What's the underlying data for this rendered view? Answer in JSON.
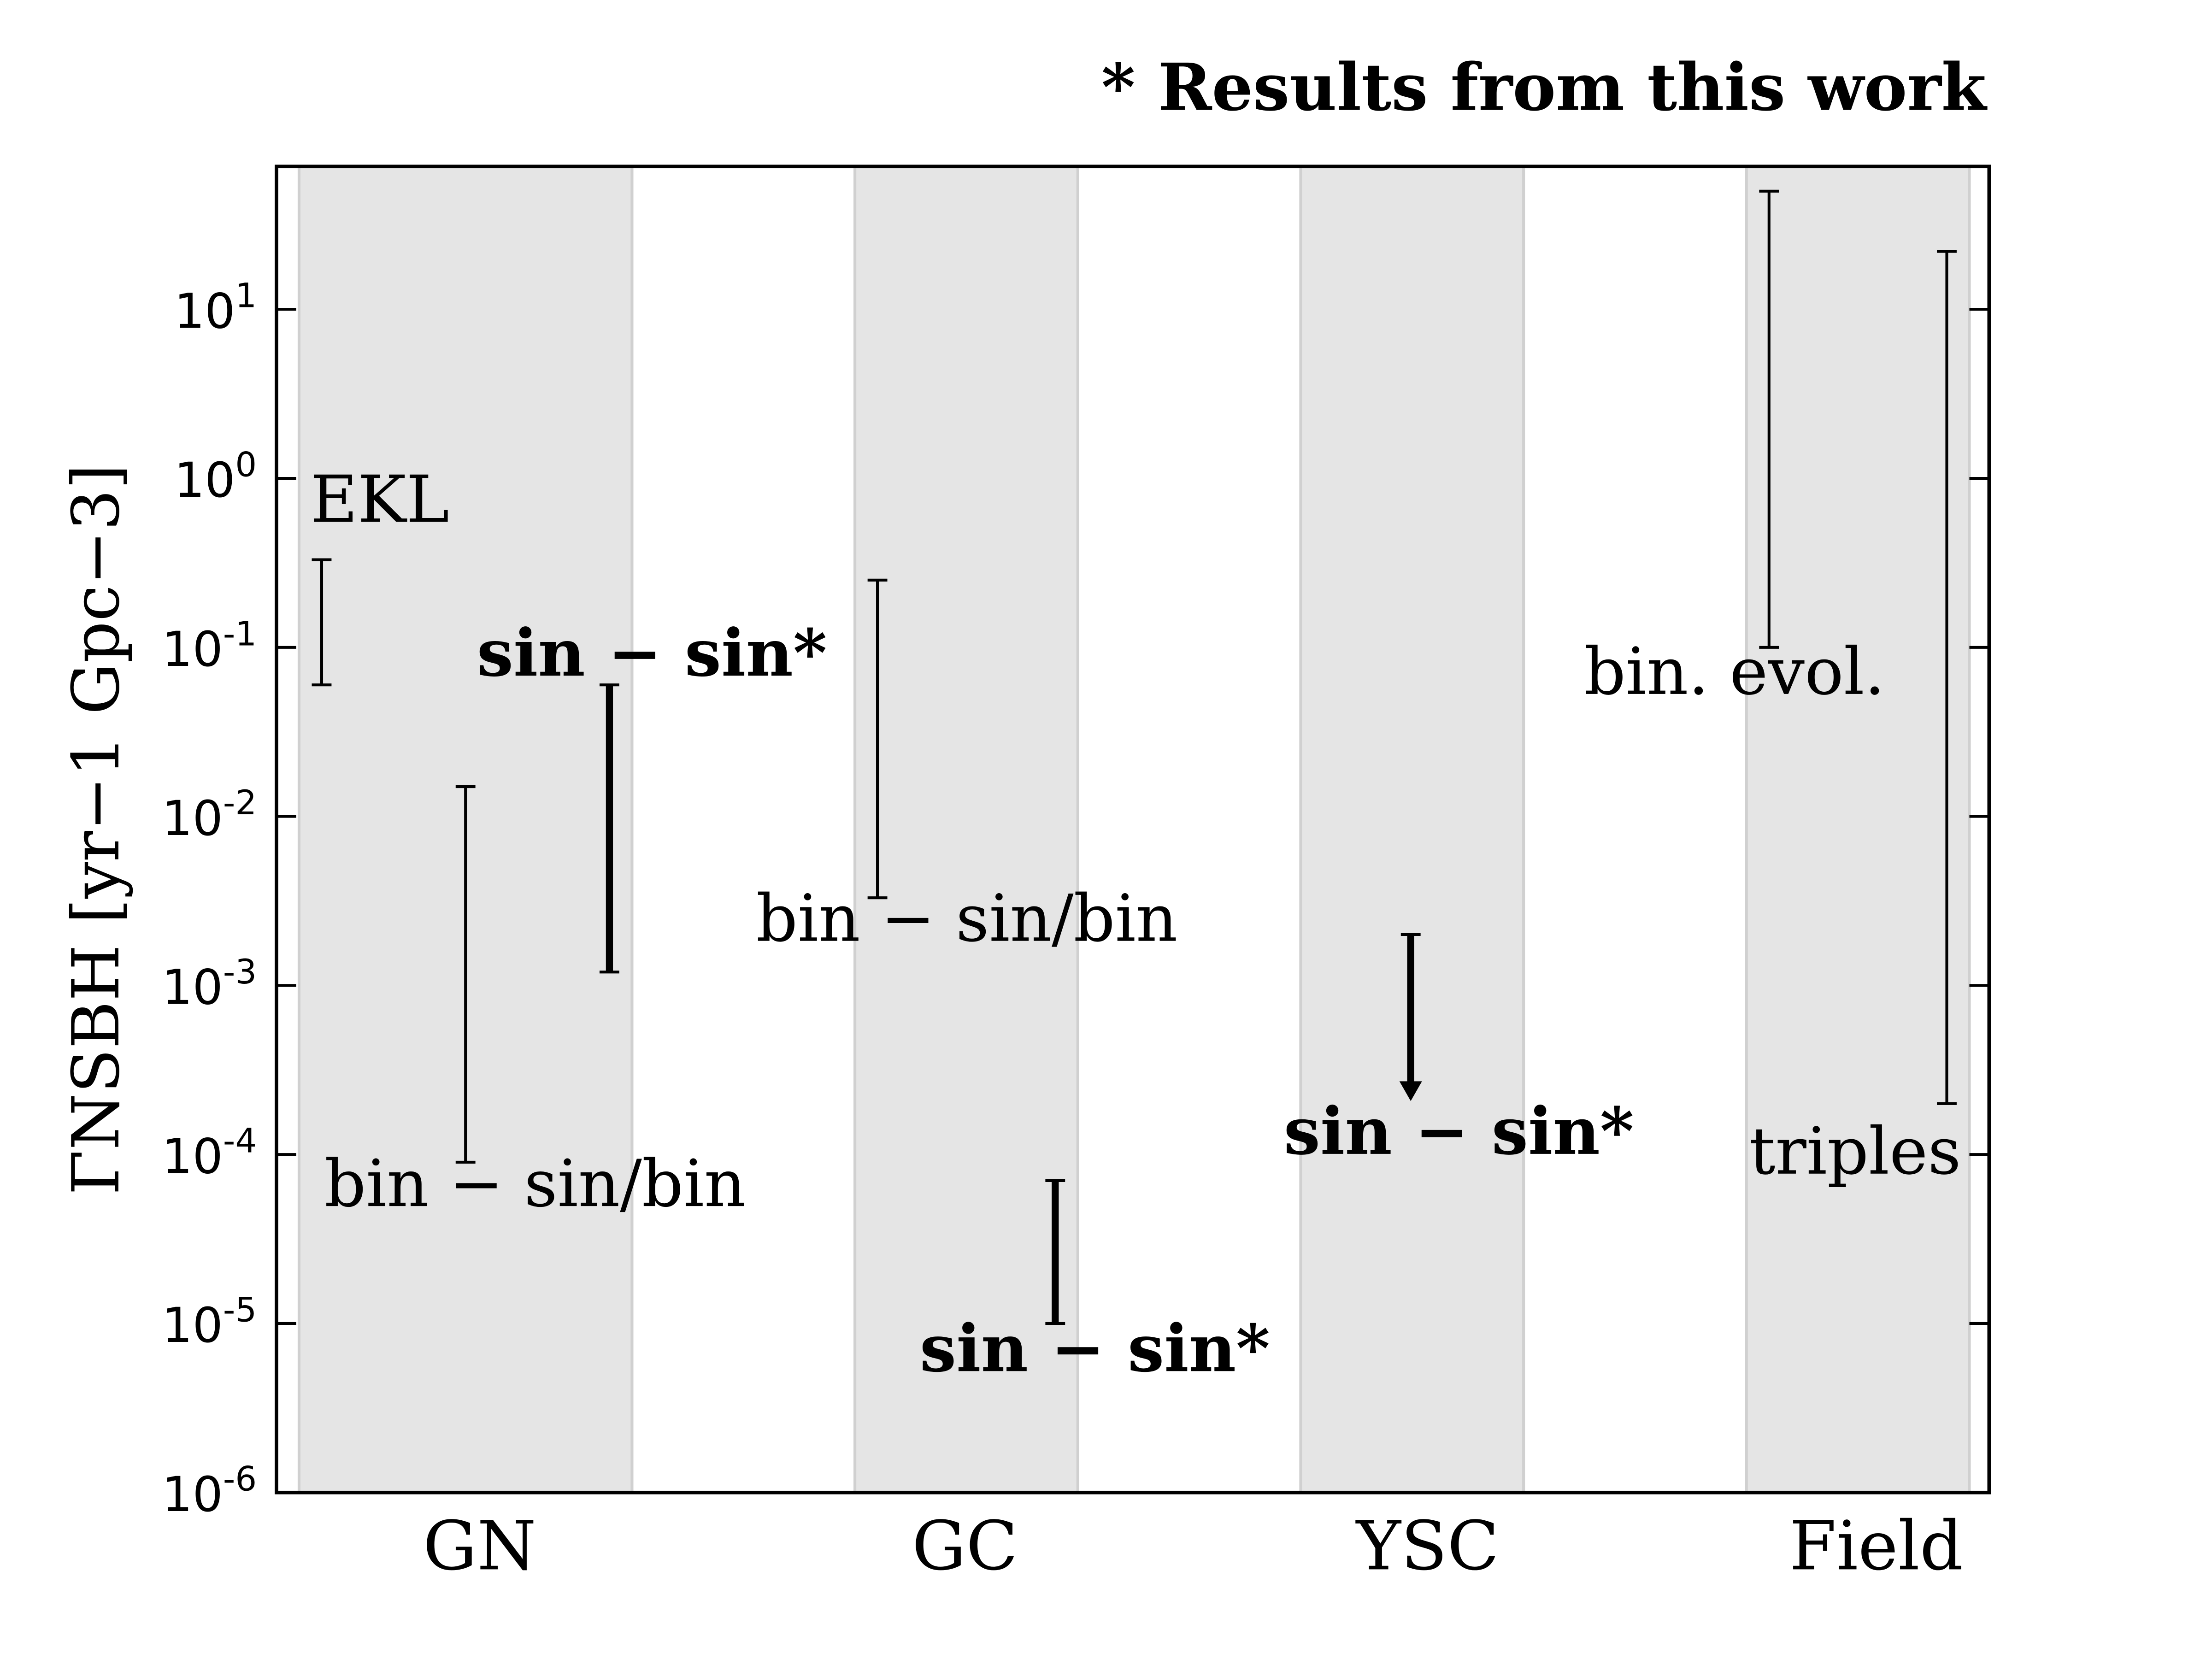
{
  "chart_data": {
    "type": "range",
    "title": "* Results from this work",
    "y_label": "ΓNSBH [yr−1 Gpc−3]",
    "categories": [
      "GN",
      "GC",
      "YSC",
      "Field"
    ],
    "log_y": true,
    "ylim": [
      1e-06,
      70
    ],
    "yticks": [
      {
        "value": 1e-06,
        "label": "10^-6"
      },
      {
        "value": 1e-05,
        "label": "10^-5"
      },
      {
        "value": 0.0001,
        "label": "10^-4"
      },
      {
        "value": 0.001,
        "label": "10^-3"
      },
      {
        "value": 0.01,
        "label": "10^-2"
      },
      {
        "value": 0.1,
        "label": "10^-1"
      },
      {
        "value": 1,
        "label": "10^0"
      },
      {
        "value": 10,
        "label": "10^1"
      }
    ],
    "band_color": "#e5e5e5",
    "series": [
      {
        "name": "EKL",
        "category": "GN",
        "low": 0.06,
        "high": 0.33,
        "bold": false
      },
      {
        "name": "bin − sin/bin",
        "category": "GN",
        "low": 9e-05,
        "high": 0.015,
        "bold": false
      },
      {
        "name": "sin − sin*",
        "category": "GN",
        "low": 0.0012,
        "high": 0.06,
        "bold": true
      },
      {
        "name": "bin − sin/bin",
        "category": "GC",
        "low": 0.0033,
        "high": 0.25,
        "bold": false
      },
      {
        "name": "sin − sin*",
        "category": "GC",
        "low": 1e-05,
        "high": 7e-05,
        "bold": true
      },
      {
        "name": "sin − sin*",
        "category": "YSC",
        "high": 0.002,
        "upper_limit": true,
        "bold": true
      },
      {
        "name": "bin.  evol.",
        "category": "Field",
        "low": 0.1,
        "high": 50,
        "bold": false
      },
      {
        "name": "triples",
        "category": "Field",
        "low": 0.0002,
        "high": 22,
        "bold": false
      }
    ]
  }
}
